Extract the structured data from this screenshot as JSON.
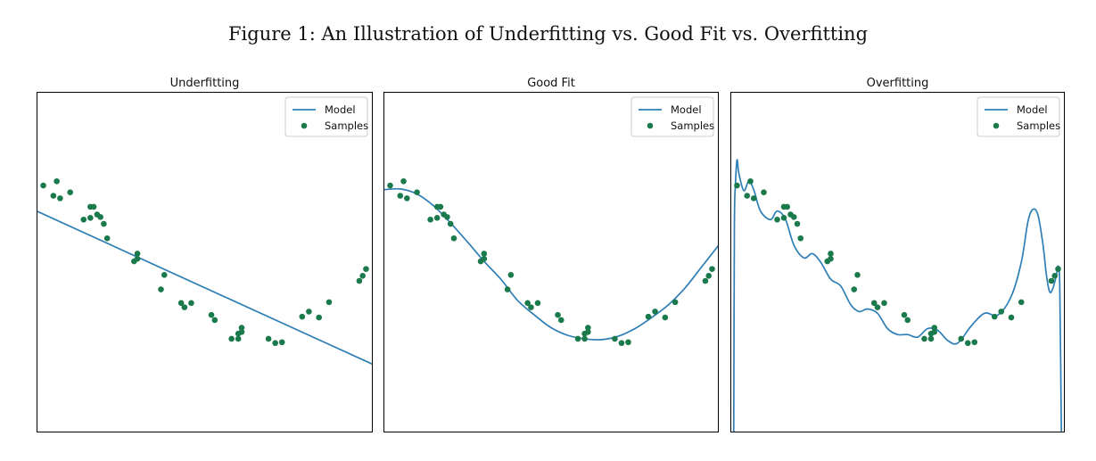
{
  "figure": {
    "caption": "Figure 1: An Illustration of Underfitting vs. Good Fit vs. Overfitting"
  },
  "colors": {
    "model": "#2f7fb6",
    "samples": "#1a7a4c",
    "axes": "#000000",
    "legend_border": "#cccccc"
  },
  "chart_data": [
    {
      "type": "line",
      "title": "Underfitting",
      "xlabel": "",
      "ylabel": "",
      "xlim": [
        0.0,
        1.0
      ],
      "ylim": [
        -2.0,
        2.0
      ],
      "grid": false,
      "ticks_visible": false,
      "legend": {
        "position": "top-right",
        "entries": [
          "Model",
          "Samples"
        ]
      },
      "series": [
        {
          "name": "Model",
          "kind": "line",
          "x": [
            0.0,
            1.0
          ],
          "y": [
            0.6,
            -1.2
          ]
        },
        {
          "name": "Samples",
          "kind": "scatter",
          "x": [
            0.02,
            0.05,
            0.06,
            0.07,
            0.1,
            0.14,
            0.16,
            0.16,
            0.17,
            0.18,
            0.19,
            0.2,
            0.21,
            0.29,
            0.3,
            0.3,
            0.37,
            0.38,
            0.43,
            0.44,
            0.46,
            0.52,
            0.53,
            0.58,
            0.6,
            0.6,
            0.61,
            0.61,
            0.69,
            0.71,
            0.73,
            0.79,
            0.81,
            0.84,
            0.87,
            0.96,
            0.97,
            0.98
          ],
          "y": [
            0.9,
            0.78,
            0.95,
            0.75,
            0.82,
            0.5,
            0.65,
            0.52,
            0.65,
            0.56,
            0.53,
            0.45,
            0.28,
            0.01,
            0.04,
            0.1,
            -0.32,
            -0.15,
            -0.48,
            -0.53,
            -0.48,
            -0.62,
            -0.68,
            -0.9,
            -0.84,
            -0.9,
            -0.82,
            -0.77,
            -0.9,
            -0.95,
            -0.94,
            -0.64,
            -0.58,
            -0.65,
            -0.47,
            -0.22,
            -0.16,
            -0.08
          ]
        }
      ]
    },
    {
      "type": "line",
      "title": "Good Fit",
      "xlabel": "",
      "ylabel": "",
      "xlim": [
        0.0,
        1.0
      ],
      "ylim": [
        -2.0,
        2.0
      ],
      "grid": false,
      "ticks_visible": false,
      "legend": {
        "position": "top-right",
        "entries": [
          "Model",
          "Samples"
        ]
      },
      "series": [
        {
          "name": "Model",
          "kind": "line",
          "x": [
            0.0,
            0.05,
            0.1,
            0.15,
            0.2,
            0.25,
            0.3,
            0.35,
            0.4,
            0.45,
            0.5,
            0.55,
            0.6,
            0.65,
            0.7,
            0.75,
            0.8,
            0.85,
            0.9,
            0.95,
            1.0
          ],
          "y": [
            0.85,
            0.86,
            0.8,
            0.66,
            0.46,
            0.24,
            0.01,
            -0.2,
            -0.45,
            -0.62,
            -0.77,
            -0.86,
            -0.9,
            -0.91,
            -0.87,
            -0.78,
            -0.65,
            -0.5,
            -0.3,
            -0.05,
            0.2
          ]
        },
        {
          "name": "Samples",
          "kind": "scatter",
          "x": [
            0.02,
            0.05,
            0.06,
            0.07,
            0.1,
            0.14,
            0.16,
            0.16,
            0.17,
            0.18,
            0.19,
            0.2,
            0.21,
            0.29,
            0.3,
            0.3,
            0.37,
            0.38,
            0.43,
            0.44,
            0.46,
            0.52,
            0.53,
            0.58,
            0.6,
            0.6,
            0.61,
            0.61,
            0.69,
            0.71,
            0.73,
            0.79,
            0.81,
            0.84,
            0.87,
            0.96,
            0.97,
            0.98
          ],
          "y": [
            0.9,
            0.78,
            0.95,
            0.75,
            0.82,
            0.5,
            0.65,
            0.52,
            0.65,
            0.56,
            0.53,
            0.45,
            0.28,
            0.01,
            0.04,
            0.1,
            -0.32,
            -0.15,
            -0.48,
            -0.53,
            -0.48,
            -0.62,
            -0.68,
            -0.9,
            -0.84,
            -0.9,
            -0.82,
            -0.77,
            -0.9,
            -0.95,
            -0.94,
            -0.64,
            -0.58,
            -0.65,
            -0.47,
            -0.22,
            -0.16,
            -0.08
          ]
        }
      ]
    },
    {
      "type": "line",
      "title": "Overfitting",
      "xlabel": "",
      "ylabel": "",
      "xlim": [
        0.0,
        1.0
      ],
      "ylim": [
        -2.0,
        2.0
      ],
      "grid": false,
      "ticks_visible": false,
      "legend": {
        "position": "top-right",
        "entries": [
          "Model",
          "Samples"
        ]
      },
      "series": [
        {
          "name": "Model",
          "kind": "line",
          "x": [
            0.01,
            0.012,
            0.015,
            0.02,
            0.025,
            0.04,
            0.055,
            0.07,
            0.09,
            0.12,
            0.14,
            0.165,
            0.19,
            0.22,
            0.245,
            0.27,
            0.3,
            0.33,
            0.36,
            0.385,
            0.41,
            0.44,
            0.47,
            0.5,
            0.53,
            0.56,
            0.59,
            0.62,
            0.65,
            0.68,
            0.72,
            0.76,
            0.8,
            0.84,
            0.87,
            0.89,
            0.905,
            0.92,
            0.935,
            0.945,
            0.955,
            0.965,
            0.975,
            0.98,
            0.985,
            0.99
          ],
          "y": [
            -2.1,
            0.4,
            0.9,
            1.2,
            1.05,
            0.84,
            0.95,
            0.85,
            0.6,
            0.5,
            0.6,
            0.5,
            0.2,
            0.05,
            0.1,
            0.0,
            -0.2,
            -0.28,
            -0.5,
            -0.58,
            -0.55,
            -0.6,
            -0.78,
            -0.85,
            -0.85,
            -0.88,
            -0.78,
            -0.8,
            -0.92,
            -0.95,
            -0.75,
            -0.6,
            -0.62,
            -0.4,
            0.0,
            0.48,
            0.62,
            0.55,
            0.2,
            -0.15,
            -0.35,
            -0.3,
            -0.15,
            -0.05,
            -0.3,
            -2.1
          ]
        },
        {
          "name": "Samples",
          "kind": "scatter",
          "x": [
            0.02,
            0.05,
            0.06,
            0.07,
            0.1,
            0.14,
            0.16,
            0.16,
            0.17,
            0.18,
            0.19,
            0.2,
            0.21,
            0.29,
            0.3,
            0.3,
            0.37,
            0.38,
            0.43,
            0.44,
            0.46,
            0.52,
            0.53,
            0.58,
            0.6,
            0.6,
            0.61,
            0.61,
            0.69,
            0.71,
            0.73,
            0.79,
            0.81,
            0.84,
            0.87,
            0.96,
            0.97,
            0.98
          ],
          "y": [
            0.9,
            0.78,
            0.95,
            0.75,
            0.82,
            0.5,
            0.65,
            0.52,
            0.65,
            0.56,
            0.53,
            0.45,
            0.28,
            0.01,
            0.04,
            0.1,
            -0.32,
            -0.15,
            -0.48,
            -0.53,
            -0.48,
            -0.62,
            -0.68,
            -0.9,
            -0.84,
            -0.9,
            -0.82,
            -0.77,
            -0.9,
            -0.95,
            -0.94,
            -0.64,
            -0.58,
            -0.65,
            -0.47,
            -0.22,
            -0.16,
            -0.08
          ]
        }
      ]
    }
  ]
}
